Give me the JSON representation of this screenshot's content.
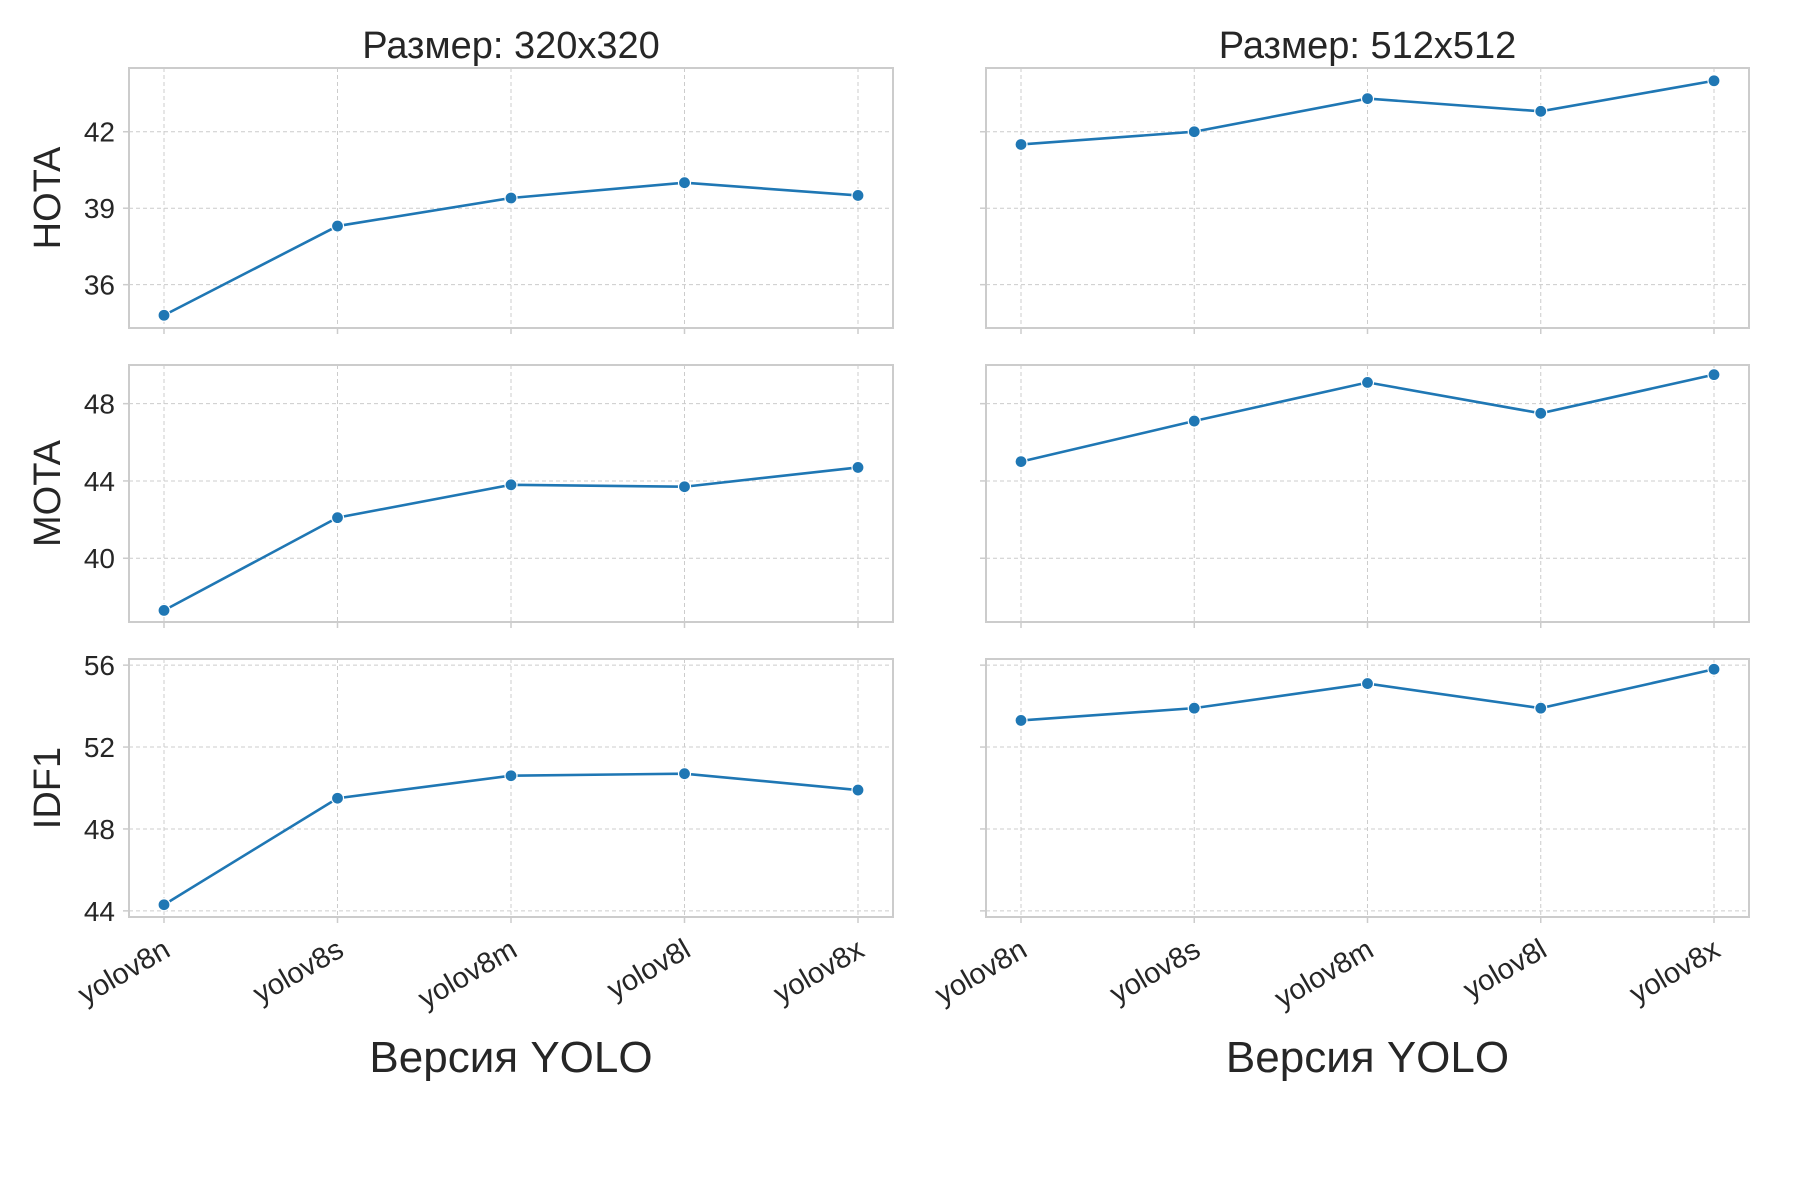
{
  "chart_data": [
    {
      "type": "line",
      "title": "Размер: 320x320",
      "xlabel": "",
      "ylabel": "HOTA",
      "categories": [
        "yolov8n",
        "yolov8s",
        "yolov8m",
        "yolov8l",
        "yolov8x"
      ],
      "series": [
        {
          "values": [
            34.8,
            38.3,
            39.4,
            40.0,
            39.5
          ]
        }
      ],
      "ylim": [
        34.3,
        44.5
      ],
      "yticks": [
        36,
        39,
        42
      ],
      "grid": true,
      "color": "#1f77b4"
    },
    {
      "type": "line",
      "title": "Размер: 512x512",
      "xlabel": "",
      "ylabel": "",
      "categories": [
        "yolov8n",
        "yolov8s",
        "yolov8m",
        "yolov8l",
        "yolov8x"
      ],
      "series": [
        {
          "values": [
            41.5,
            42.0,
            43.3,
            42.8,
            44.0
          ]
        }
      ],
      "ylim": [
        34.3,
        44.5
      ],
      "yticks": [
        36,
        39,
        42
      ],
      "grid": true,
      "color": "#1f77b4"
    },
    {
      "type": "line",
      "title": "",
      "xlabel": "",
      "ylabel": "MOTA",
      "categories": [
        "yolov8n",
        "yolov8s",
        "yolov8m",
        "yolov8l",
        "yolov8x"
      ],
      "series": [
        {
          "values": [
            37.3,
            42.1,
            43.8,
            43.7,
            44.7
          ]
        }
      ],
      "ylim": [
        36.7,
        50.0
      ],
      "yticks": [
        40,
        44,
        48
      ],
      "grid": true,
      "color": "#1f77b4"
    },
    {
      "type": "line",
      "title": "",
      "xlabel": "",
      "ylabel": "",
      "categories": [
        "yolov8n",
        "yolov8s",
        "yolov8m",
        "yolov8l",
        "yolov8x"
      ],
      "series": [
        {
          "values": [
            45.0,
            47.1,
            49.1,
            47.5,
            49.5
          ]
        }
      ],
      "ylim": [
        36.7,
        50.0
      ],
      "yticks": [
        40,
        44,
        48
      ],
      "grid": true,
      "color": "#1f77b4"
    },
    {
      "type": "line",
      "title": "",
      "xlabel": "Версия YOLO",
      "ylabel": "IDF1",
      "categories": [
        "yolov8n",
        "yolov8s",
        "yolov8m",
        "yolov8l",
        "yolov8x"
      ],
      "series": [
        {
          "values": [
            44.3,
            49.5,
            50.6,
            50.7,
            49.9
          ]
        }
      ],
      "ylim": [
        43.7,
        56.3
      ],
      "yticks": [
        44,
        48,
        52,
        56
      ],
      "grid": true,
      "color": "#1f77b4"
    },
    {
      "type": "line",
      "title": "",
      "xlabel": "Версия YOLO",
      "ylabel": "",
      "categories": [
        "yolov8n",
        "yolov8s",
        "yolov8m",
        "yolov8l",
        "yolov8x"
      ],
      "series": [
        {
          "values": [
            53.3,
            53.9,
            55.1,
            53.9,
            55.8
          ]
        }
      ],
      "ylim": [
        43.7,
        56.3
      ],
      "yticks": [
        44,
        48,
        52,
        56
      ],
      "grid": true,
      "color": "#1f77b4"
    }
  ]
}
